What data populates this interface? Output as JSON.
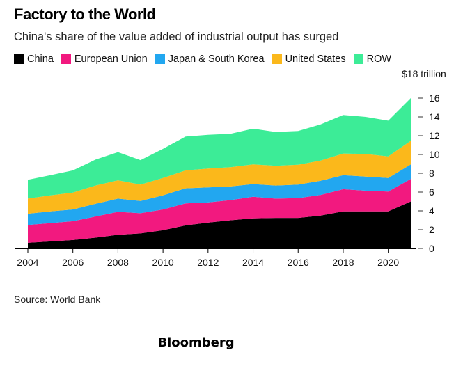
{
  "title": "Factory to the World",
  "subtitle": "China's share of the value added of industrial output has surged",
  "source": "Source: World Bank",
  "brand": "Bloomberg",
  "chart_data": {
    "type": "area",
    "stacked": true,
    "title": "Factory to the World",
    "subtitle": "China's share of the value added of industrial output has surged",
    "x": [
      2004,
      2005,
      2006,
      2007,
      2008,
      2009,
      2010,
      2011,
      2012,
      2013,
      2014,
      2015,
      2016,
      2017,
      2018,
      2019,
      2020,
      2021
    ],
    "xticks": [
      "2004",
      "2006",
      "2008",
      "2010",
      "2012",
      "2014",
      "2016",
      "2018",
      "2020"
    ],
    "xlim": [
      2004,
      2021
    ],
    "ylim": [
      0,
      18
    ],
    "yticks": [
      "0",
      "2",
      "4",
      "6",
      "8",
      "10",
      "12",
      "14",
      "16"
    ],
    "ytop_label": "$18 trillion",
    "y_axis_side": "right",
    "legend_position": "top-left",
    "series": [
      {
        "name": "China",
        "color": "#000000",
        "values": [
          0.6,
          0.75,
          0.9,
          1.15,
          1.45,
          1.6,
          1.95,
          2.45,
          2.75,
          3.0,
          3.2,
          3.25,
          3.25,
          3.5,
          3.95,
          3.95,
          3.95,
          5.0
        ]
      },
      {
        "name": "European Union",
        "color": "#f2197f",
        "values": [
          1.9,
          1.95,
          2.0,
          2.25,
          2.45,
          2.15,
          2.2,
          2.35,
          2.15,
          2.15,
          2.3,
          2.05,
          2.1,
          2.2,
          2.35,
          2.2,
          2.1,
          2.4
        ]
      },
      {
        "name": "Japan & South Korea",
        "color": "#22a7f0",
        "values": [
          1.2,
          1.25,
          1.25,
          1.35,
          1.4,
          1.3,
          1.5,
          1.6,
          1.6,
          1.45,
          1.35,
          1.4,
          1.45,
          1.5,
          1.5,
          1.5,
          1.45,
          1.55
        ]
      },
      {
        "name": "United States",
        "color": "#fbb81b",
        "values": [
          1.6,
          1.7,
          1.8,
          1.95,
          1.95,
          1.75,
          1.85,
          1.9,
          2.0,
          2.05,
          2.1,
          2.1,
          2.1,
          2.15,
          2.3,
          2.4,
          2.3,
          2.5
        ]
      },
      {
        "name": "ROW",
        "color": "#3cec97",
        "values": [
          2.0,
          2.15,
          2.35,
          2.75,
          3.0,
          2.6,
          3.1,
          3.6,
          3.6,
          3.55,
          3.8,
          3.6,
          3.6,
          3.85,
          4.1,
          3.95,
          3.8,
          4.55
        ]
      }
    ]
  }
}
